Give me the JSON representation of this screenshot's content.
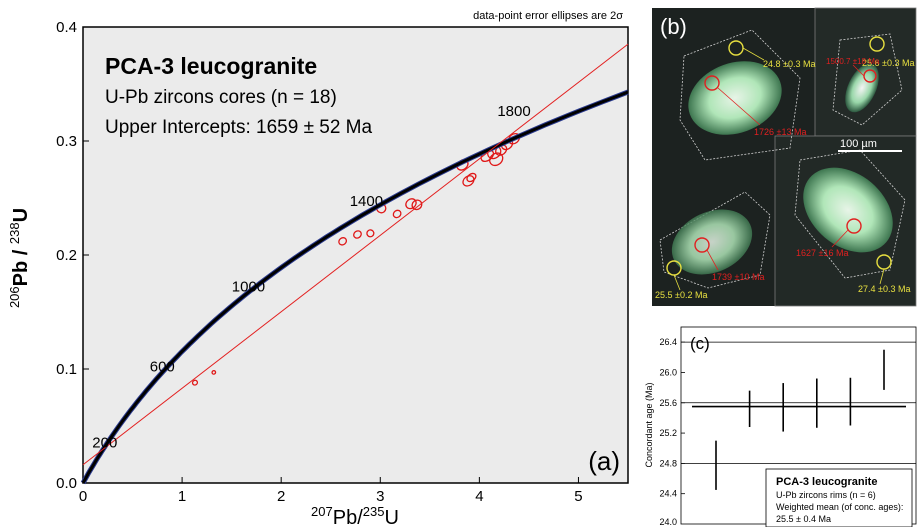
{
  "chart_data": [
    {
      "panel": "a",
      "type": "scatter",
      "title": "PCA-3 leucogranite",
      "subtitle_lines": [
        "U-Pb zircons cores (n = 18)",
        "Upper Intercepts: 1659 ± 52 Ma"
      ],
      "note": "data-point error ellipses are 2σ",
      "panel_label": "(a)",
      "xlabel": {
        "pre": "207",
        "base": "Pb/",
        "mid": "235",
        "tail": "U"
      },
      "ylabel": {
        "pre": "206",
        "base": "Pb / ",
        "mid": "238",
        "tail": "U"
      },
      "xlim": [
        0,
        5.5
      ],
      "ylim": [
        0,
        0.4
      ],
      "xticks": [
        0,
        1,
        2,
        3,
        4,
        5
      ],
      "yticks": [
        0.0,
        0.1,
        0.2,
        0.3,
        0.4
      ],
      "ytick_labels": [
        "0.0",
        "0.1",
        "0.2",
        "0.3",
        "0.4"
      ],
      "age_labels": [
        {
          "text": "200",
          "x": 0.22,
          "y": 0.031
        },
        {
          "text": "600",
          "x": 0.8,
          "y": 0.0977
        },
        {
          "text": "1000",
          "x": 1.67,
          "y": 0.168
        },
        {
          "text": "1400",
          "x": 2.86,
          "y": 0.243
        },
        {
          "text": "1800",
          "x": 4.35,
          "y": 0.322
        }
      ],
      "discordia": {
        "x": [
          0,
          5.5
        ],
        "y": [
          0.016,
          0.385
        ]
      },
      "ellipses": [
        {
          "x": 1.13,
          "y": 0.088,
          "rx": 0.025,
          "ry": 0.002
        },
        {
          "x": 1.32,
          "y": 0.097,
          "rx": 0.018,
          "ry": 0.0015
        },
        {
          "x": 2.62,
          "y": 0.212,
          "rx": 0.04,
          "ry": 0.003
        },
        {
          "x": 2.77,
          "y": 0.218,
          "rx": 0.04,
          "ry": 0.003
        },
        {
          "x": 2.9,
          "y": 0.219,
          "rx": 0.035,
          "ry": 0.003
        },
        {
          "x": 3.01,
          "y": 0.241,
          "rx": 0.045,
          "ry": 0.004
        },
        {
          "x": 3.17,
          "y": 0.236,
          "rx": 0.04,
          "ry": 0.003
        },
        {
          "x": 3.31,
          "y": 0.245,
          "rx": 0.055,
          "ry": 0.004
        },
        {
          "x": 3.37,
          "y": 0.244,
          "rx": 0.05,
          "ry": 0.004
        },
        {
          "x": 3.83,
          "y": 0.279,
          "rx": 0.06,
          "ry": 0.004
        },
        {
          "x": 3.89,
          "y": 0.265,
          "rx": 0.06,
          "ry": 0.004
        },
        {
          "x": 3.92,
          "y": 0.268,
          "rx": 0.05,
          "ry": 0.003
        },
        {
          "x": 4.08,
          "y": 0.287,
          "rx": 0.07,
          "ry": 0.004
        },
        {
          "x": 4.15,
          "y": 0.29,
          "rx": 0.07,
          "ry": 0.005
        },
        {
          "x": 4.17,
          "y": 0.284,
          "rx": 0.07,
          "ry": 0.005
        },
        {
          "x": 4.22,
          "y": 0.292,
          "rx": 0.06,
          "ry": 0.004
        },
        {
          "x": 4.28,
          "y": 0.297,
          "rx": 0.06,
          "ry": 0.004
        },
        {
          "x": 4.35,
          "y": 0.302,
          "rx": 0.06,
          "ry": 0.004
        }
      ],
      "colors": {
        "concordia": "#000000",
        "concordia_band": "#2a3a8f",
        "discordia": "#e32020",
        "ellipse": "#e01818",
        "plot_bg": "#ebebeb"
      }
    },
    {
      "panel": "c",
      "type": "errorbar",
      "panel_label": "(c)",
      "ylabel": "Concordant age (Ma)",
      "ylim": [
        24.0,
        26.6
      ],
      "yticks": [
        24.4,
        24.8,
        25.2,
        25.6,
        26.0,
        26.4
      ],
      "ytick_labels": [
        "24.4",
        "24.8",
        "25.2",
        "25.6",
        "26.0",
        "26.4"
      ],
      "bottom_tick_label": "24.0",
      "grid_lines": [
        24.8,
        25.6,
        26.4
      ],
      "weighted_mean": 25.55,
      "points": [
        {
          "center": 24.8,
          "low": 24.45,
          "high": 25.1
        },
        {
          "center": 25.55,
          "low": 25.28,
          "high": 25.76
        },
        {
          "center": 25.55,
          "low": 25.22,
          "high": 25.86
        },
        {
          "center": 25.6,
          "low": 25.27,
          "high": 25.92
        },
        {
          "center": 25.6,
          "low": 25.3,
          "high": 25.93
        },
        {
          "center": 26.0,
          "low": 25.77,
          "high": 26.3
        }
      ],
      "legend": {
        "title": "PCA-3 leucogranite",
        "lines": [
          "U-Pb zircons rims (n = 6)",
          "Weighted mean (of conc. ages):",
          "25.5 ± 0.4 Ma"
        ]
      }
    }
  ],
  "images_b": {
    "panel_label": "(b)",
    "scale_bar": "100 µm",
    "rim_ages": [
      "24.8 ±0.3 Ma",
      "25.6 ±0.3 Ma",
      "25.5 ±0.2 Ma",
      "27.4 ±0.3 Ma"
    ],
    "core_ages": [
      "1726 ±13 Ma",
      "1500.7 ±18 Ma",
      "1739 ±10 Ma",
      "1627 ±16 Ma"
    ],
    "colors": {
      "rim": "#e8e040",
      "core": "#e02020",
      "bg": "#1c2220",
      "zircon": "#b8f0c0"
    }
  }
}
